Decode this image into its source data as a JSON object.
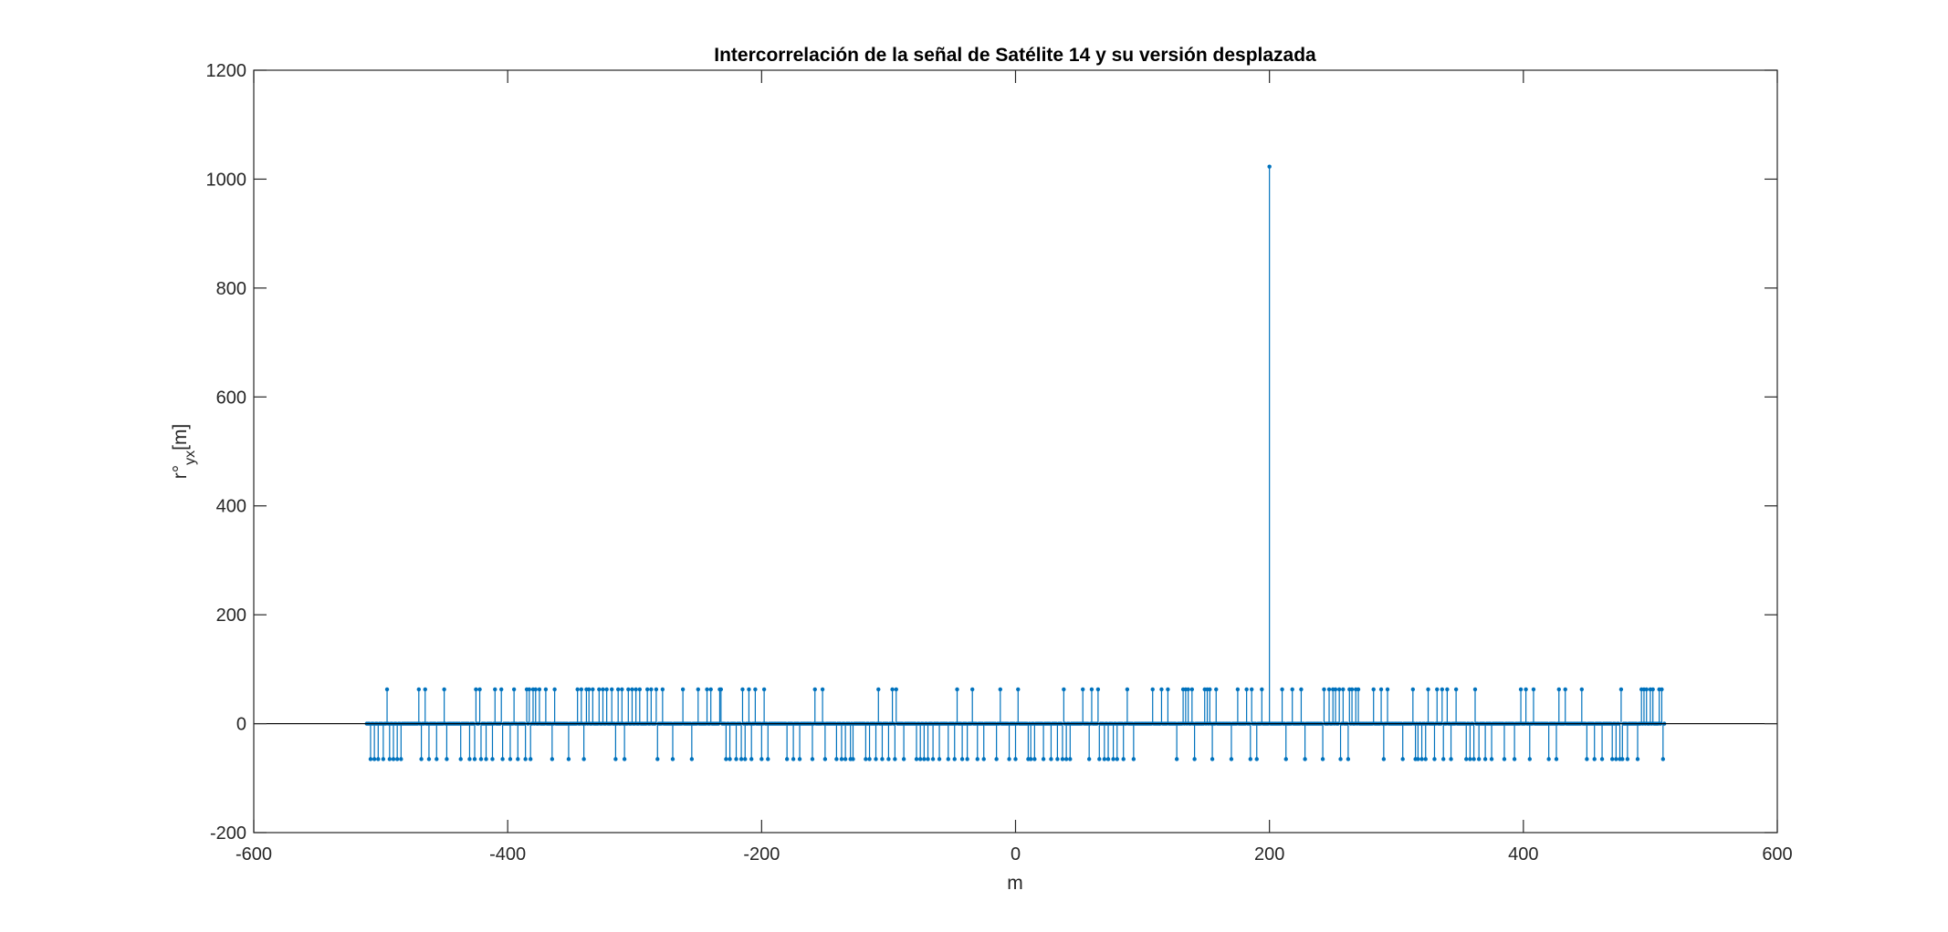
{
  "chart_data": {
    "type": "stem",
    "title": "Intercorrelación de la señal de Satélite 14 y su versión desplazada",
    "xlabel": "m",
    "ylabel": {
      "base": "r°",
      "subscript": "yx",
      "suffix": "[m]"
    },
    "xlim": [
      -600,
      600
    ],
    "ylim": [
      -200,
      1200
    ],
    "xticks": [
      -600,
      -400,
      -200,
      0,
      200,
      400,
      600
    ],
    "yticks": [
      -200,
      0,
      200,
      400,
      600,
      800,
      1000,
      1200
    ],
    "x_range": [
      -511,
      511
    ],
    "baseline": 0,
    "grid": false,
    "colors": {
      "stem": "#0072BD",
      "baseline": "#000000",
      "axes": "#262626"
    },
    "peak": {
      "x": 200,
      "y": 1023
    },
    "levels": {
      "high": 63,
      "low": -65,
      "zero": 0
    },
    "high_points_x": [
      -495,
      -470,
      -465,
      -450,
      -430,
      -425,
      -422,
      -410,
      -405,
      -395,
      -385,
      -383,
      -380,
      -378,
      -375,
      -370,
      -363,
      -345,
      -342,
      -338,
      -336,
      -333,
      -328,
      -325,
      -322,
      -318,
      -313,
      -310,
      -305,
      -302,
      -299,
      -296,
      -290,
      -287,
      -283,
      -278,
      -262,
      -250,
      -243,
      -240,
      -233,
      -232,
      -225,
      -215,
      -210,
      -205,
      -198,
      -175,
      -158,
      -152,
      -128,
      -108,
      -105,
      -100,
      -97,
      -94,
      -75,
      -48,
      -46,
      -38,
      -34,
      -12,
      0,
      2,
      38,
      53,
      60,
      65,
      73,
      88,
      108,
      115,
      120,
      132,
      134,
      136,
      139,
      149,
      151,
      153,
      158,
      175,
      182,
      186,
      190,
      194,
      210,
      213,
      218,
      225,
      243,
      247,
      250,
      252,
      255,
      258,
      263,
      265,
      268,
      270,
      282,
      288,
      293,
      313,
      325,
      332,
      336,
      340,
      347,
      362,
      398,
      402,
      408,
      428,
      433,
      446,
      450,
      477,
      493,
      495,
      497,
      500,
      502,
      507,
      509
    ],
    "low_points_x": [
      -508,
      -505,
      -502,
      -498,
      -493,
      -490,
      -487,
      -484,
      -468,
      -462,
      -456,
      -448,
      -437,
      -430,
      -426,
      -421,
      -417,
      -412,
      -404,
      -398,
      -392,
      -386,
      -382,
      -365,
      -352,
      -340,
      -315,
      -308,
      -282,
      -270,
      -255,
      -228,
      -225,
      -220,
      -216,
      -213,
      -208,
      -200,
      -195,
      -180,
      -175,
      -170,
      -160,
      -150,
      -141,
      -137,
      -134,
      -130,
      -128,
      -118,
      -115,
      -110,
      -105,
      -100,
      -95,
      -88,
      -78,
      -75,
      -72,
      -69,
      -65,
      -60,
      -53,
      -48,
      -42,
      -38,
      -30,
      -25,
      -15,
      -5,
      0,
      10,
      12,
      15,
      22,
      28,
      33,
      37,
      40,
      43,
      58,
      66,
      70,
      73,
      77,
      80,
      85,
      93,
      127,
      141,
      155,
      170,
      185,
      190,
      213,
      228,
      242,
      256,
      262,
      290,
      305,
      315,
      317,
      320,
      323,
      330,
      337,
      343,
      355,
      358,
      361,
      365,
      370,
      375,
      385,
      393,
      405,
      420,
      426,
      450,
      456,
      462,
      470,
      473,
      476,
      478,
      482,
      490,
      510
    ]
  }
}
